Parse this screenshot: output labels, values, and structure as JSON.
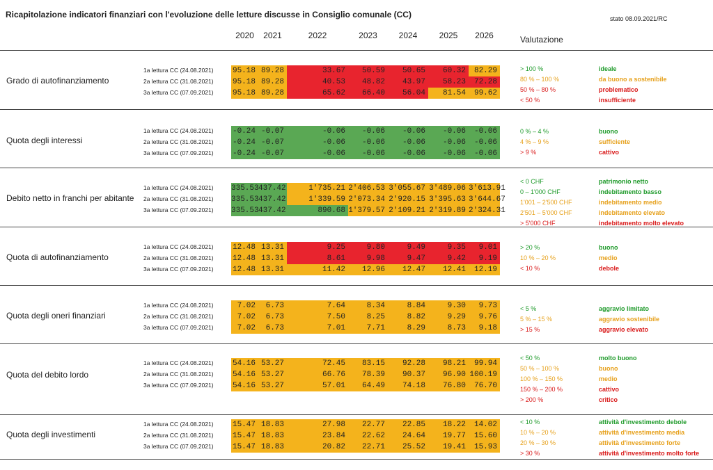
{
  "header": {
    "title": "Ricapitolazione indicatori finanziari con l'evoluzione delle letture discusse in Consiglio comunale (CC)",
    "stato": "stato 08.09.2021/RC",
    "valutazione": "Valutazione",
    "years": [
      "2020",
      "2021",
      "2022",
      "2023",
      "2024",
      "2025",
      "2026"
    ]
  },
  "colors": {
    "orange": "#f4b31c",
    "red": "#e8242e",
    "green": "#5aa854",
    "text_green": "#1e9a2a",
    "text_yellow": "#e6a01a",
    "text_red": "#d91a1a"
  },
  "sections": [
    {
      "title": "Grado di autofinanziamento",
      "rows": [
        {
          "label": "1a lettura CC (24.08.2021)",
          "values": [
            "95.18",
            "89.28",
            "33.67",
            "50.59",
            "50.65",
            "60.32",
            "82.29"
          ],
          "colors": [
            "O",
            "O",
            "R",
            "R",
            "R",
            "R",
            "O"
          ]
        },
        {
          "label": "2a lettura CC (31.08.2021)",
          "values": [
            "95.18",
            "89.28",
            "40.53",
            "48.82",
            "43.97",
            "58.23",
            "72.28"
          ],
          "colors": [
            "O",
            "O",
            "R",
            "R",
            "R",
            "R",
            "R"
          ]
        },
        {
          "label": "3a lettura CC (07.09.2021)",
          "values": [
            "95.18",
            "89.28",
            "65.62",
            "66.40",
            "56.04",
            "81.54",
            "99.62"
          ],
          "colors": [
            "O",
            "O",
            "R",
            "R",
            "R",
            "O",
            "O"
          ]
        }
      ],
      "criteria": [
        {
          "crit": "> 100 %",
          "label": "ideale",
          "c": "cg"
        },
        {
          "crit": "80 % – 100 %",
          "label": "da buono a sostenibile",
          "c": "cy"
        },
        {
          "crit": "50 % – 80 %",
          "label": "problematico",
          "c": "cr"
        },
        {
          "crit": "< 50 %",
          "label": "insufficiente",
          "c": "cr"
        }
      ]
    },
    {
      "title": "Quota degli interessi",
      "rows": [
        {
          "label": "1a lettura CC (24.08.2021)",
          "values": [
            "-0.24",
            "-0.07",
            "-0.06",
            "-0.06",
            "-0.06",
            "-0.06",
            "-0.06"
          ],
          "colors": [
            "G",
            "G",
            "G",
            "G",
            "G",
            "G",
            "G"
          ]
        },
        {
          "label": "2a lettura CC (31.08.2021)",
          "values": [
            "-0.24",
            "-0.07",
            "-0.06",
            "-0.06",
            "-0.06",
            "-0.06",
            "-0.06"
          ],
          "colors": [
            "G",
            "G",
            "G",
            "G",
            "G",
            "G",
            "G"
          ]
        },
        {
          "label": "3a lettura CC (07.09.2021)",
          "values": [
            "-0.24",
            "-0.07",
            "-0.06",
            "-0.06",
            "-0.06",
            "-0.06",
            "-0.06"
          ],
          "colors": [
            "G",
            "G",
            "G",
            "G",
            "G",
            "G",
            "G"
          ]
        }
      ],
      "criteria": [
        {
          "crit": "0 % – 4 %",
          "label": "buono",
          "c": "cg"
        },
        {
          "crit": "4 % – 9 %",
          "label": "sufficiente",
          "c": "cy"
        },
        {
          "crit": "> 9 %",
          "label": "cattivo",
          "c": "cr"
        }
      ]
    },
    {
      "title": "Debito netto in franchi per abitante",
      "rows": [
        {
          "label": "1a lettura CC (24.08.2021)",
          "values": [
            "335.53",
            "437.42",
            "1'735.21",
            "2'406.53",
            "3'055.67",
            "3'489.06",
            "3'613.91"
          ],
          "colors": [
            "G",
            "G",
            "O",
            "O",
            "O",
            "O",
            "O"
          ]
        },
        {
          "label": "2a lettura CC (31.08.2021)",
          "values": [
            "335.53",
            "437.42",
            "1'339.59",
            "2'073.34",
            "2'920.15",
            "3'395.63",
            "3'644.67"
          ],
          "colors": [
            "G",
            "G",
            "O",
            "O",
            "O",
            "O",
            "O"
          ]
        },
        {
          "label": "3a lettura CC (07.09.2021)",
          "values": [
            "335.53",
            "437.42",
            "890.68",
            "1'379.57",
            "2'109.21",
            "2'319.89",
            "2'324.31"
          ],
          "colors": [
            "G",
            "G",
            "G",
            "O",
            "O",
            "O",
            "O"
          ]
        }
      ],
      "criteria": [
        {
          "crit": "< 0 CHF",
          "label": "patrimonio netto",
          "c": "cg"
        },
        {
          "crit": "0 – 1'000 CHF",
          "label": "indebitamento basso",
          "c": "cg"
        },
        {
          "crit": "1'001 – 2'500 CHF",
          "label": "indebitamento medio",
          "c": "cy"
        },
        {
          "crit": "2'501 – 5'000 CHF",
          "label": "indebitamento elevato",
          "c": "cy"
        },
        {
          "crit": "> 5'000 CHF",
          "label": "indebitamento molto elevato",
          "c": "cr"
        }
      ]
    },
    {
      "title": "Quota di autofinanziamento",
      "rows": [
        {
          "label": "1a lettura CC (24.08.2021)",
          "values": [
            "12.48",
            "13.31",
            "9.25",
            "9.80",
            "9.49",
            "9.35",
            "9.01"
          ],
          "colors": [
            "O",
            "O",
            "R",
            "R",
            "R",
            "R",
            "R"
          ]
        },
        {
          "label": "2a lettura CC (31.08.2021)",
          "values": [
            "12.48",
            "13.31",
            "8.61",
            "9.98",
            "9.47",
            "9.42",
            "9.19"
          ],
          "colors": [
            "O",
            "O",
            "R",
            "R",
            "R",
            "R",
            "R"
          ]
        },
        {
          "label": "3a lettura CC (07.09.2021)",
          "values": [
            "12.48",
            "13.31",
            "11.42",
            "12.96",
            "12.47",
            "12.41",
            "12.19"
          ],
          "colors": [
            "O",
            "O",
            "O",
            "O",
            "O",
            "O",
            "O"
          ]
        }
      ],
      "criteria": [
        {
          "crit": "> 20 %",
          "label": "buono",
          "c": "cg"
        },
        {
          "crit": "10 % – 20 %",
          "label": "medio",
          "c": "cy"
        },
        {
          "crit": "< 10 %",
          "label": "debole",
          "c": "cr"
        }
      ]
    },
    {
      "title": "Quota degli oneri finanziari",
      "rows": [
        {
          "label": "1a lettura CC (24.08.2021)",
          "values": [
            "7.02",
            "6.73",
            "7.64",
            "8.34",
            "8.84",
            "9.30",
            "9.73"
          ],
          "colors": [
            "O",
            "O",
            "O",
            "O",
            "O",
            "O",
            "O"
          ]
        },
        {
          "label": "2a lettura CC (31.08.2021)",
          "values": [
            "7.02",
            "6.73",
            "7.50",
            "8.25",
            "8.82",
            "9.29",
            "9.76"
          ],
          "colors": [
            "O",
            "O",
            "O",
            "O",
            "O",
            "O",
            "O"
          ]
        },
        {
          "label": "3a lettura CC (07.09.2021)",
          "values": [
            "7.02",
            "6.73",
            "7.01",
            "7.71",
            "8.29",
            "8.73",
            "9.18"
          ],
          "colors": [
            "O",
            "O",
            "O",
            "O",
            "O",
            "O",
            "O"
          ]
        }
      ],
      "criteria": [
        {
          "crit": "< 5 %",
          "label": "aggravio limitato",
          "c": "cg"
        },
        {
          "crit": "5 % – 15 %",
          "label": "aggravio sostenibile",
          "c": "cy"
        },
        {
          "crit": "> 15 %",
          "label": "aggravio elevato",
          "c": "cr"
        }
      ]
    },
    {
      "title": "Quota del debito lordo",
      "rows": [
        {
          "label": "1a lettura CC (24.08.2021)",
          "values": [
            "54.16",
            "53.27",
            "72.45",
            "83.15",
            "92.28",
            "98.21",
            "99.94"
          ],
          "colors": [
            "O",
            "O",
            "O",
            "O",
            "O",
            "O",
            "O"
          ]
        },
        {
          "label": "2a lettura CC (31.08.2021)",
          "values": [
            "54.16",
            "53.27",
            "66.76",
            "78.39",
            "90.37",
            "96.90",
            "100.19"
          ],
          "colors": [
            "O",
            "O",
            "O",
            "O",
            "O",
            "O",
            "O"
          ]
        },
        {
          "label": "3a lettura CC (07.09.2021)",
          "values": [
            "54.16",
            "53.27",
            "57.01",
            "64.49",
            "74.18",
            "76.80",
            "76.70"
          ],
          "colors": [
            "O",
            "O",
            "O",
            "O",
            "O",
            "O",
            "O"
          ]
        }
      ],
      "criteria": [
        {
          "crit": "< 50 %",
          "label": "molto buono",
          "c": "cg"
        },
        {
          "crit": "50 % – 100 %",
          "label": "buono",
          "c": "cy"
        },
        {
          "crit": "100 % – 150 %",
          "label": "medio",
          "c": "cy"
        },
        {
          "crit": "150 % – 200 %",
          "label": "cattivo",
          "c": "cr"
        },
        {
          "crit": "> 200 %",
          "label": "critico",
          "c": "cr"
        }
      ]
    },
    {
      "title": "Quota degli investimenti",
      "rows": [
        {
          "label": "1a lettura CC (24.08.2021)",
          "values": [
            "15.47",
            "18.83",
            "27.98",
            "22.77",
            "22.85",
            "18.22",
            "14.02"
          ],
          "colors": [
            "O",
            "O",
            "O",
            "O",
            "O",
            "O",
            "O"
          ]
        },
        {
          "label": "2a lettura CC (31.08.2021)",
          "values": [
            "15.47",
            "18.83",
            "23.84",
            "22.62",
            "24.64",
            "19.77",
            "15.60"
          ],
          "colors": [
            "O",
            "O",
            "O",
            "O",
            "O",
            "O",
            "O"
          ]
        },
        {
          "label": "3a lettura CC (07.09.2021)",
          "values": [
            "15.47",
            "18.83",
            "20.82",
            "22.71",
            "25.52",
            "19.41",
            "15.93"
          ],
          "colors": [
            "O",
            "O",
            "O",
            "O",
            "O",
            "O",
            "O"
          ]
        }
      ],
      "criteria": [
        {
          "crit": "< 10 %",
          "label": "attività d'investimento debole",
          "c": "cg"
        },
        {
          "crit": "10 % – 20 %",
          "label": "attività d'investimento media",
          "c": "cy"
        },
        {
          "crit": "20 % – 30 %",
          "label": "attività d'investimento forte",
          "c": "cy"
        },
        {
          "crit": "> 30 %",
          "label": "attività d'investimento molto forte",
          "c": "cr"
        }
      ]
    }
  ]
}
